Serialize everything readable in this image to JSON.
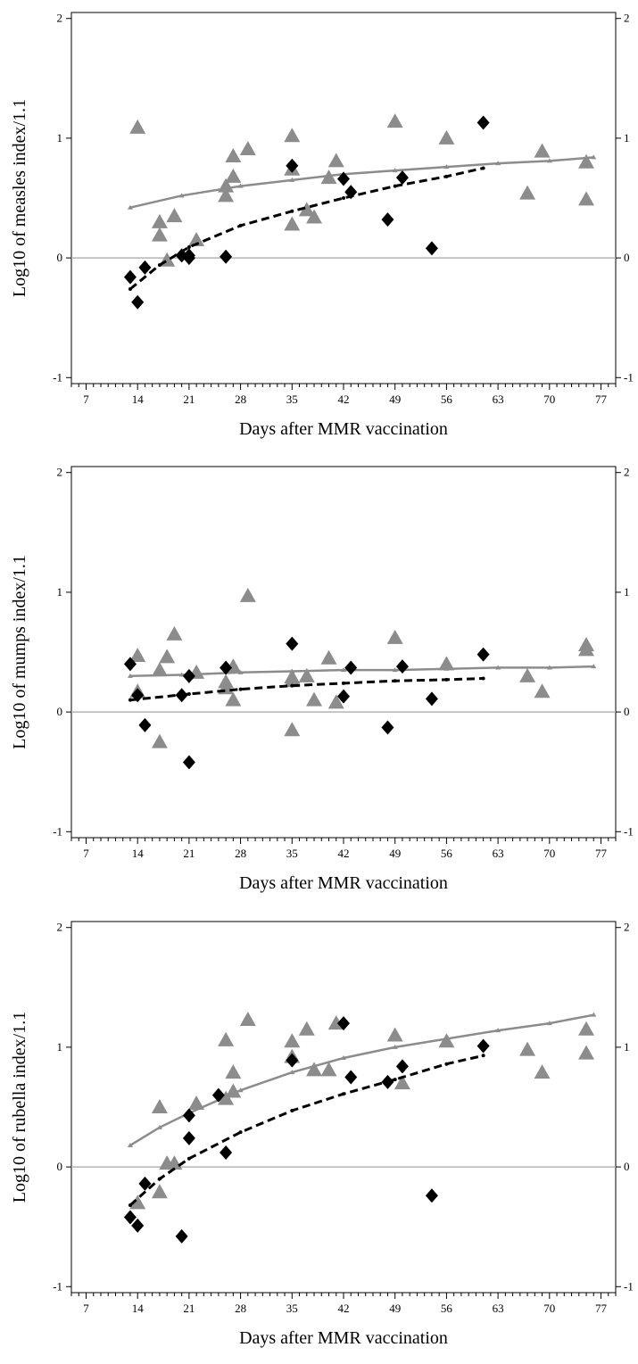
{
  "chart_data": [
    {
      "type": "scatter",
      "title": "",
      "xlabel": "Days after MMR vaccination",
      "ylabel": "Log10 of measles index/1.1",
      "xlim": [
        5,
        79
      ],
      "ylim": [
        -1.05,
        2.05
      ],
      "x_ticks": [
        "7",
        "14",
        "21",
        "28",
        "35",
        "42",
        "49",
        "56",
        "63",
        "70",
        "77"
      ],
      "y_ticks": [
        "-1",
        "0",
        "1",
        "2"
      ],
      "reference_line": 0,
      "grid": false,
      "colors": {
        "triangles": "#8c8c8c",
        "diamonds": "#000000",
        "reference": "#b4b4b4"
      },
      "series": [
        {
          "marker": "triangle",
          "points": [
            [
              14,
              1.09
            ],
            [
              17,
              0.3
            ],
            [
              17,
              0.19
            ],
            [
              18,
              -0.02
            ],
            [
              19,
              0.35
            ],
            [
              22,
              0.15
            ],
            [
              26,
              0.6
            ],
            [
              26,
              0.52
            ],
            [
              27,
              0.85
            ],
            [
              27,
              0.68
            ],
            [
              29,
              0.91
            ],
            [
              35,
              0.28
            ],
            [
              35,
              0.74
            ],
            [
              35,
              1.02
            ],
            [
              37,
              0.4
            ],
            [
              38,
              0.34
            ],
            [
              40,
              0.67
            ],
            [
              41,
              0.81
            ],
            [
              49,
              1.14
            ],
            [
              56,
              1.0
            ],
            [
              67,
              0.54
            ],
            [
              69,
              0.89
            ],
            [
              75,
              0.8
            ],
            [
              75,
              0.49
            ]
          ],
          "fit_line": [
            [
              13,
              0.42
            ],
            [
              20,
              0.52
            ],
            [
              28,
              0.6
            ],
            [
              35,
              0.65
            ],
            [
              42,
              0.7
            ],
            [
              49,
              0.73
            ],
            [
              56,
              0.76
            ],
            [
              63,
              0.79
            ],
            [
              70,
              0.81
            ],
            [
              76,
              0.84
            ]
          ]
        },
        {
          "marker": "diamond",
          "points": [
            [
              13,
              -0.16
            ],
            [
              14,
              -0.37
            ],
            [
              15,
              -0.08
            ],
            [
              20,
              0.02
            ],
            [
              21,
              0.02
            ],
            [
              21,
              0.0
            ],
            [
              26,
              0.01
            ],
            [
              35,
              0.77
            ],
            [
              42,
              0.66
            ],
            [
              43,
              0.55
            ],
            [
              48,
              0.32
            ],
            [
              50,
              0.67
            ],
            [
              54,
              0.08
            ],
            [
              61,
              1.13
            ]
          ],
          "fit_line": [
            [
              13,
              -0.26
            ],
            [
              17,
              -0.06
            ],
            [
              21,
              0.09
            ],
            [
              28,
              0.27
            ],
            [
              35,
              0.39
            ],
            [
              42,
              0.5
            ],
            [
              49,
              0.6
            ],
            [
              56,
              0.68
            ],
            [
              61,
              0.75
            ]
          ]
        }
      ]
    },
    {
      "type": "scatter",
      "title": "",
      "xlabel": "Days after MMR vaccination",
      "ylabel": "Log10 of mumps index/1.1",
      "xlim": [
        5,
        79
      ],
      "ylim": [
        -1.05,
        2.05
      ],
      "x_ticks": [
        "7",
        "14",
        "21",
        "28",
        "35",
        "42",
        "49",
        "56",
        "63",
        "70",
        "77"
      ],
      "y_ticks": [
        "-1",
        "0",
        "1",
        "2"
      ],
      "reference_line": 0,
      "grid": false,
      "colors": {
        "triangles": "#8c8c8c",
        "diamonds": "#000000",
        "reference": "#b4b4b4"
      },
      "series": [
        {
          "marker": "triangle",
          "points": [
            [
              14,
              0.47
            ],
            [
              14,
              0.17
            ],
            [
              17,
              -0.25
            ],
            [
              17,
              0.35
            ],
            [
              18,
              0.46
            ],
            [
              19,
              0.65
            ],
            [
              22,
              0.33
            ],
            [
              26,
              0.25
            ],
            [
              26,
              0.2
            ],
            [
              27,
              0.38
            ],
            [
              27,
              0.1
            ],
            [
              29,
              0.97
            ],
            [
              35,
              -0.15
            ],
            [
              35,
              0.26
            ],
            [
              35,
              0.29
            ],
            [
              37,
              0.3
            ],
            [
              38,
              0.1
            ],
            [
              40,
              0.45
            ],
            [
              41,
              0.08
            ],
            [
              49,
              0.62
            ],
            [
              56,
              0.4
            ],
            [
              67,
              0.3
            ],
            [
              69,
              0.17
            ],
            [
              75,
              0.56
            ],
            [
              75,
              0.52
            ]
          ],
          "fit_line": [
            [
              13,
              0.3
            ],
            [
              20,
              0.31
            ],
            [
              28,
              0.33
            ],
            [
              35,
              0.34
            ],
            [
              42,
              0.35
            ],
            [
              49,
              0.35
            ],
            [
              56,
              0.36
            ],
            [
              63,
              0.37
            ],
            [
              70,
              0.37
            ],
            [
              76,
              0.38
            ]
          ]
        },
        {
          "marker": "diamond",
          "points": [
            [
              13,
              0.4
            ],
            [
              14,
              0.14
            ],
            [
              15,
              -0.11
            ],
            [
              20,
              0.14
            ],
            [
              21,
              0.3
            ],
            [
              21,
              -0.42
            ],
            [
              26,
              0.37
            ],
            [
              35,
              0.57
            ],
            [
              42,
              0.13
            ],
            [
              43,
              0.37
            ],
            [
              48,
              -0.13
            ],
            [
              50,
              0.38
            ],
            [
              54,
              0.11
            ],
            [
              61,
              0.48
            ]
          ],
          "fit_line": [
            [
              13,
              0.1
            ],
            [
              21,
              0.15
            ],
            [
              28,
              0.19
            ],
            [
              35,
              0.22
            ],
            [
              42,
              0.24
            ],
            [
              49,
              0.26
            ],
            [
              56,
              0.27
            ],
            [
              61,
              0.28
            ]
          ]
        }
      ]
    },
    {
      "type": "scatter",
      "title": "",
      "xlabel": "Days after MMR vaccination",
      "ylabel": "Log10 of rubella index/1.1",
      "xlim": [
        5,
        79
      ],
      "ylim": [
        -1.05,
        2.05
      ],
      "x_ticks": [
        "7",
        "14",
        "21",
        "28",
        "35",
        "42",
        "49",
        "56",
        "63",
        "70",
        "77"
      ],
      "y_ticks": [
        "-1",
        "0",
        "1",
        "2"
      ],
      "reference_line": 0,
      "grid": false,
      "colors": {
        "triangles": "#8c8c8c",
        "diamonds": "#000000",
        "reference": "#b4b4b4"
      },
      "series": [
        {
          "marker": "triangle",
          "points": [
            [
              14,
              -0.3
            ],
            [
              17,
              -0.21
            ],
            [
              17,
              0.5
            ],
            [
              18,
              0.03
            ],
            [
              19,
              0.03
            ],
            [
              22,
              0.53
            ],
            [
              26,
              0.57
            ],
            [
              26,
              1.06
            ],
            [
              27,
              0.63
            ],
            [
              27,
              0.79
            ],
            [
              29,
              1.23
            ],
            [
              35,
              0.92
            ],
            [
              35,
              1.05
            ],
            [
              37,
              1.15
            ],
            [
              38,
              0.81
            ],
            [
              40,
              0.81
            ],
            [
              41,
              1.2
            ],
            [
              49,
              1.1
            ],
            [
              50,
              0.7
            ],
            [
              56,
              1.05
            ],
            [
              67,
              0.98
            ],
            [
              69,
              0.79
            ],
            [
              75,
              1.15
            ],
            [
              75,
              0.95
            ]
          ],
          "fit_line": [
            [
              13,
              0.18
            ],
            [
              17,
              0.33
            ],
            [
              21,
              0.45
            ],
            [
              28,
              0.64
            ],
            [
              35,
              0.79
            ],
            [
              42,
              0.91
            ],
            [
              49,
              1.0
            ],
            [
              56,
              1.07
            ],
            [
              63,
              1.14
            ],
            [
              70,
              1.2
            ],
            [
              76,
              1.27
            ]
          ]
        },
        {
          "marker": "diamond",
          "points": [
            [
              13,
              -0.42
            ],
            [
              14,
              -0.49
            ],
            [
              15,
              -0.14
            ],
            [
              20,
              -0.58
            ],
            [
              21,
              0.24
            ],
            [
              21,
              0.43
            ],
            [
              25,
              0.6
            ],
            [
              26,
              0.12
            ],
            [
              35,
              0.89
            ],
            [
              42,
              1.2
            ],
            [
              43,
              0.75
            ],
            [
              48,
              0.71
            ],
            [
              50,
              0.84
            ],
            [
              54,
              -0.24
            ],
            [
              61,
              1.01
            ]
          ],
          "fit_line": [
            [
              13,
              -0.32
            ],
            [
              17,
              -0.1
            ],
            [
              21,
              0.07
            ],
            [
              28,
              0.29
            ],
            [
              35,
              0.47
            ],
            [
              42,
              0.61
            ],
            [
              49,
              0.73
            ],
            [
              56,
              0.86
            ],
            [
              61,
              0.93
            ]
          ]
        }
      ]
    }
  ]
}
